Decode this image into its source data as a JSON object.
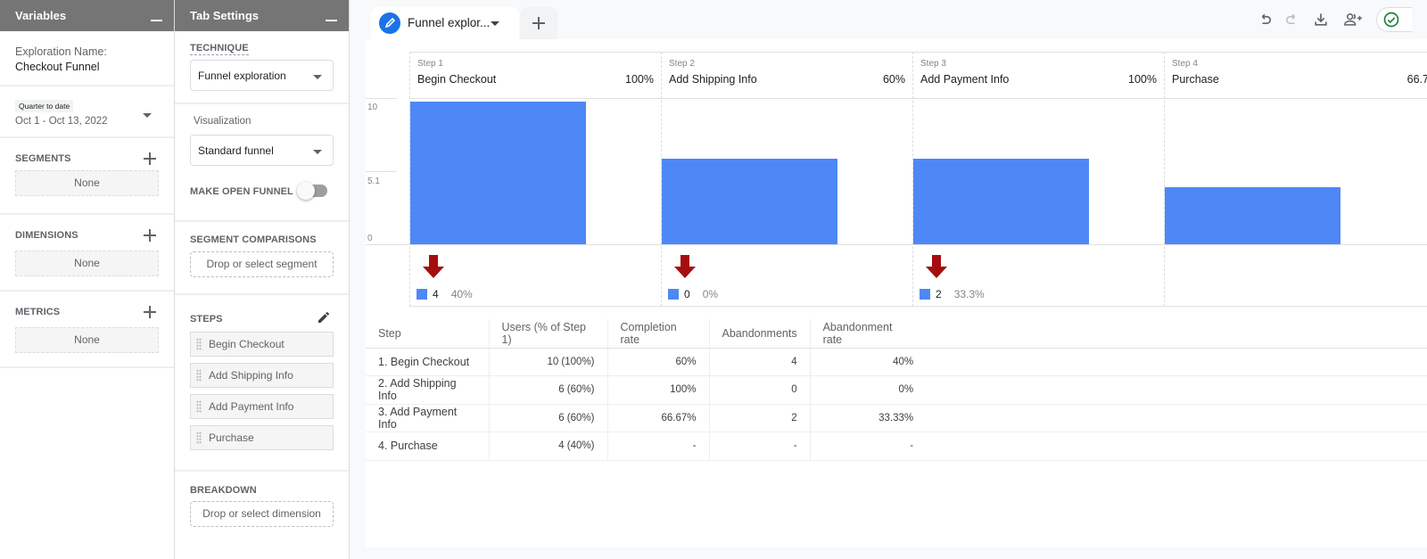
{
  "variables_panel": {
    "title": "Variables",
    "exploration_name_label": "Exploration Name:",
    "exploration_name_value": "Checkout Funnel",
    "date_chip": "Quarter to date",
    "date_range": "Oct 1 - Oct 13, 2022",
    "segments": {
      "label": "SEGMENTS",
      "value": "None"
    },
    "dimensions": {
      "label": "DIMENSIONS",
      "value": "None"
    },
    "metrics": {
      "label": "METRICS",
      "value": "None"
    }
  },
  "tab_settings": {
    "title": "Tab Settings",
    "technique_label": "TECHNIQUE",
    "technique_value": "Funnel exploration",
    "visualization_label": "Visualization",
    "visualization_value": "Standard funnel",
    "open_funnel_label": "MAKE OPEN FUNNEL",
    "open_funnel_enabled": false,
    "segment_comparisons_label": "SEGMENT COMPARISONS",
    "segment_drop_placeholder": "Drop or select segment",
    "steps_label": "STEPS",
    "steps": [
      "Begin Checkout",
      "Add Shipping Info",
      "Add Payment Info",
      "Purchase"
    ],
    "breakdown_label": "BREAKDOWN",
    "breakdown_drop_placeholder": "Drop or select dimension"
  },
  "tabs": {
    "active_tab_label": "Funnel explor...",
    "add_tab_icon": "plus-icon"
  },
  "toolbar": {
    "icons": [
      "undo-icon",
      "redo-icon",
      "download-icon",
      "share-user-icon",
      "check-circle-icon"
    ]
  },
  "colors": {
    "bar": "#4e88f7",
    "drop_arrow": "#a50e0e",
    "header_bg": "#757575",
    "accent": "#1a73e8"
  },
  "chart_data": {
    "type": "bar",
    "title": "",
    "y_ticks": [
      "10",
      "5.1",
      "0"
    ],
    "ylim": [
      0,
      10
    ],
    "categories": [
      "Begin Checkout",
      "Add Shipping Info",
      "Add Payment Info",
      "Purchase"
    ],
    "step_labels": [
      "Step 1",
      "Step 2",
      "Step 3",
      "Step 4"
    ],
    "completion_pct_labels": [
      "100%",
      "60%",
      "100%",
      "66.7"
    ],
    "values": [
      10,
      6,
      6,
      4
    ],
    "drop_offs": [
      {
        "count": "4",
        "pct": "40%"
      },
      {
        "count": "0",
        "pct": "0%"
      },
      {
        "count": "2",
        "pct": "33.3%"
      }
    ]
  },
  "table": {
    "headers": [
      "Step",
      "Users (% of Step 1)",
      "Completion rate",
      "Abandonments",
      "Abandonment rate"
    ],
    "rows": [
      [
        "1. Begin Checkout",
        "10 (100%)",
        "60%",
        "4",
        "40%"
      ],
      [
        "2. Add Shipping Info",
        "6 (60%)",
        "100%",
        "0",
        "0%"
      ],
      [
        "3. Add Payment Info",
        "6 (60%)",
        "66.67%",
        "2",
        "33.33%"
      ],
      [
        "4. Purchase",
        "4 (40%)",
        "-",
        "-",
        "-"
      ]
    ]
  }
}
